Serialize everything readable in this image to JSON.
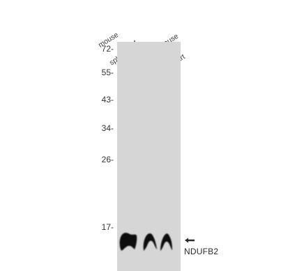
{
  "lanes": [
    {
      "line1": "mouse",
      "line2": "spleen"
    },
    {
      "line1": "rat",
      "line2": "heart"
    },
    {
      "line1": "mouse",
      "line2": "heart"
    }
  ],
  "markers": [
    "72-",
    "55-",
    "43-",
    "34-",
    "26-",
    "17-"
  ],
  "target": {
    "label": "NDUFB2",
    "arrow_icon": "left-arrow-icon"
  },
  "colors": {
    "membrane": "#d6d6d6",
    "band": "#111111"
  }
}
